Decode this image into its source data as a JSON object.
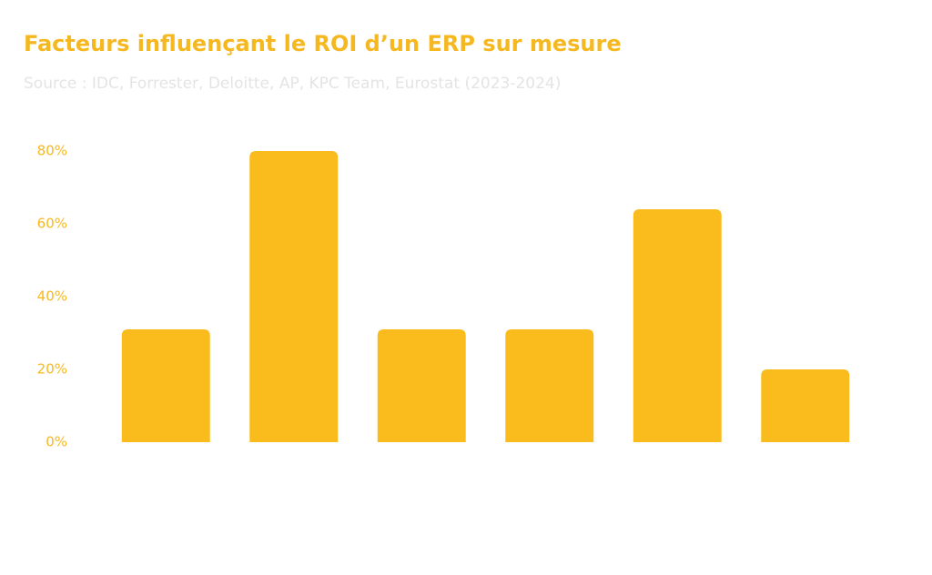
{
  "chart_data": {
    "type": "bar",
    "title": "Facteurs influençant le ROI d’un ERP sur mesure",
    "subtitle": "Source : IDC, Forrester, Deloitte, AP, KPC Team, Eurostat (2023-2024)",
    "categories": [
      null,
      null,
      null,
      null,
      null,
      null
    ],
    "values": [
      31,
      80,
      31,
      31,
      64,
      20
    ],
    "color": "#f9bc1c",
    "ylim": [
      0,
      80
    ],
    "yticks": [
      {
        "value": 0,
        "label": "0%"
      },
      {
        "value": 20,
        "label": "20%"
      },
      {
        "value": 40,
        "label": "40%"
      },
      {
        "value": 60,
        "label": "60%"
      },
      {
        "value": 80,
        "label": "80%"
      }
    ],
    "grid": false
  }
}
